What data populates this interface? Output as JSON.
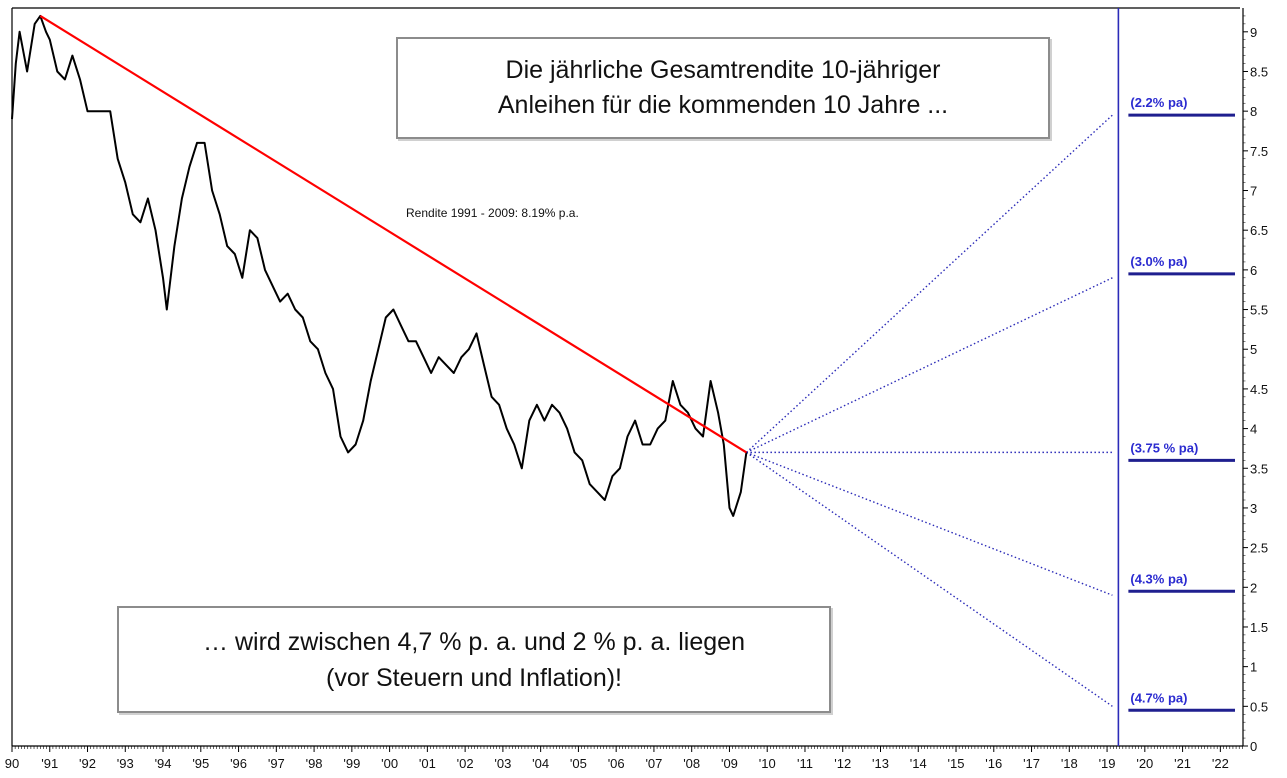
{
  "chart_data": {
    "type": "line",
    "x_axis": {
      "range": [
        1990,
        2022.6
      ],
      "tick_labels": [
        "90",
        "'91",
        "'92",
        "'93",
        "'94",
        "'95",
        "'96",
        "'97",
        "'98",
        "'99",
        "'00",
        "'01",
        "'02",
        "'03",
        "'04",
        "'05",
        "'06",
        "'07",
        "'08",
        "'09",
        "'10",
        "'11",
        "'12",
        "'13",
        "'14",
        "'15",
        "'16",
        "'17",
        "'18",
        "'19",
        "'20",
        "'21",
        "'22"
      ]
    },
    "y_axis": {
      "position": "right",
      "range": [
        0,
        9.3
      ],
      "tick_labels": [
        "9",
        "8.5",
        "8",
        "7.5",
        "7",
        "6.5",
        "6",
        "5.5",
        "5",
        "4.5",
        "4",
        "3.5",
        "3",
        "2.5",
        "2",
        "1.5",
        "1",
        "0.5",
        "0"
      ]
    },
    "series": [
      {
        "color": "#000000",
        "points": [
          [
            1990.0,
            7.9
          ],
          [
            1990.1,
            8.6
          ],
          [
            1990.2,
            9.0
          ],
          [
            1990.4,
            8.5
          ],
          [
            1990.6,
            9.1
          ],
          [
            1990.75,
            9.2
          ],
          [
            1990.9,
            9.0
          ],
          [
            1991.0,
            8.9
          ],
          [
            1991.2,
            8.5
          ],
          [
            1991.4,
            8.4
          ],
          [
            1991.6,
            8.7
          ],
          [
            1991.8,
            8.4
          ],
          [
            1992.0,
            8.0
          ],
          [
            1992.3,
            8.0
          ],
          [
            1992.6,
            8.0
          ],
          [
            1992.8,
            7.4
          ],
          [
            1993.0,
            7.1
          ],
          [
            1993.2,
            6.7
          ],
          [
            1993.4,
            6.6
          ],
          [
            1993.6,
            6.9
          ],
          [
            1993.8,
            6.5
          ],
          [
            1994.0,
            5.9
          ],
          [
            1994.1,
            5.5
          ],
          [
            1994.3,
            6.3
          ],
          [
            1994.5,
            6.9
          ],
          [
            1994.7,
            7.3
          ],
          [
            1994.9,
            7.6
          ],
          [
            1995.1,
            7.6
          ],
          [
            1995.3,
            7.0
          ],
          [
            1995.5,
            6.7
          ],
          [
            1995.7,
            6.3
          ],
          [
            1995.9,
            6.2
          ],
          [
            1996.1,
            5.9
          ],
          [
            1996.3,
            6.5
          ],
          [
            1996.5,
            6.4
          ],
          [
            1996.7,
            6.0
          ],
          [
            1996.9,
            5.8
          ],
          [
            1997.1,
            5.6
          ],
          [
            1997.3,
            5.7
          ],
          [
            1997.5,
            5.5
          ],
          [
            1997.7,
            5.4
          ],
          [
            1997.9,
            5.1
          ],
          [
            1998.1,
            5.0
          ],
          [
            1998.3,
            4.7
          ],
          [
            1998.5,
            4.5
          ],
          [
            1998.7,
            3.9
          ],
          [
            1998.9,
            3.7
          ],
          [
            1999.1,
            3.8
          ],
          [
            1999.3,
            4.1
          ],
          [
            1999.5,
            4.6
          ],
          [
            1999.7,
            5.0
          ],
          [
            1999.9,
            5.4
          ],
          [
            2000.1,
            5.5
          ],
          [
            2000.3,
            5.3
          ],
          [
            2000.5,
            5.1
          ],
          [
            2000.7,
            5.1
          ],
          [
            2000.9,
            4.9
          ],
          [
            2001.1,
            4.7
          ],
          [
            2001.3,
            4.9
          ],
          [
            2001.5,
            4.8
          ],
          [
            2001.7,
            4.7
          ],
          [
            2001.9,
            4.9
          ],
          [
            2002.1,
            5.0
          ],
          [
            2002.3,
            5.2
          ],
          [
            2002.5,
            4.8
          ],
          [
            2002.7,
            4.4
          ],
          [
            2002.9,
            4.3
          ],
          [
            2003.1,
            4.0
          ],
          [
            2003.3,
            3.8
          ],
          [
            2003.5,
            3.5
          ],
          [
            2003.7,
            4.1
          ],
          [
            2003.9,
            4.3
          ],
          [
            2004.1,
            4.1
          ],
          [
            2004.3,
            4.3
          ],
          [
            2004.5,
            4.2
          ],
          [
            2004.7,
            4.0
          ],
          [
            2004.9,
            3.7
          ],
          [
            2005.1,
            3.6
          ],
          [
            2005.3,
            3.3
          ],
          [
            2005.5,
            3.2
          ],
          [
            2005.7,
            3.1
          ],
          [
            2005.9,
            3.4
          ],
          [
            2006.1,
            3.5
          ],
          [
            2006.3,
            3.9
          ],
          [
            2006.5,
            4.1
          ],
          [
            2006.7,
            3.8
          ],
          [
            2006.9,
            3.8
          ],
          [
            2007.1,
            4.0
          ],
          [
            2007.3,
            4.1
          ],
          [
            2007.5,
            4.6
          ],
          [
            2007.7,
            4.3
          ],
          [
            2007.9,
            4.2
          ],
          [
            2008.1,
            4.0
          ],
          [
            2008.3,
            3.9
          ],
          [
            2008.5,
            4.6
          ],
          [
            2008.7,
            4.2
          ],
          [
            2008.85,
            3.8
          ],
          [
            2009.0,
            3.0
          ],
          [
            2009.1,
            2.9
          ],
          [
            2009.3,
            3.2
          ],
          [
            2009.45,
            3.7
          ]
        ]
      },
      {
        "color": "#ff0000",
        "points": [
          [
            1990.75,
            9.2
          ],
          [
            2009.45,
            3.7
          ]
        ]
      }
    ],
    "scenario_lines": {
      "color": "#2b2bb8",
      "origin": [
        2009.45,
        3.7
      ],
      "targets": [
        [
          2019.3,
          7.95
        ],
        [
          2019.3,
          5.9
        ],
        [
          2019.3,
          3.7
        ],
        [
          2019.3,
          1.9
        ],
        [
          2019.3,
          0.5
        ]
      ]
    },
    "scenario_levels": [
      {
        "label": "(2.2% pa)",
        "value": 7.95
      },
      {
        "label": "(3.0% pa)",
        "value": 5.95
      },
      {
        "label": "(3.75 % pa)",
        "value": 3.6
      },
      {
        "label": "(4.3% pa)",
        "value": 1.95
      },
      {
        "label": "(4.7% pa)",
        "value": 0.45
      }
    ],
    "vertical_line_x": 2019.3
  },
  "annotations": {
    "title_line1": "Die jährliche Gesamtrendite 10-jähriger",
    "title_line2": "Anleihen für die kommenden 10 Jahre ...",
    "return_note": "Rendite 1991 - 2009: 8.19% p.a.",
    "conclusion_line1": "… wird zwischen 4,7 % p. a. und 2 % p. a. liegen",
    "conclusion_line2": "(vor Steuern und Inflation)!"
  },
  "colors": {
    "price_line": "#000000",
    "trend_line": "#ff0000",
    "scenario": "#2b2bb8",
    "axis": "#000000"
  }
}
